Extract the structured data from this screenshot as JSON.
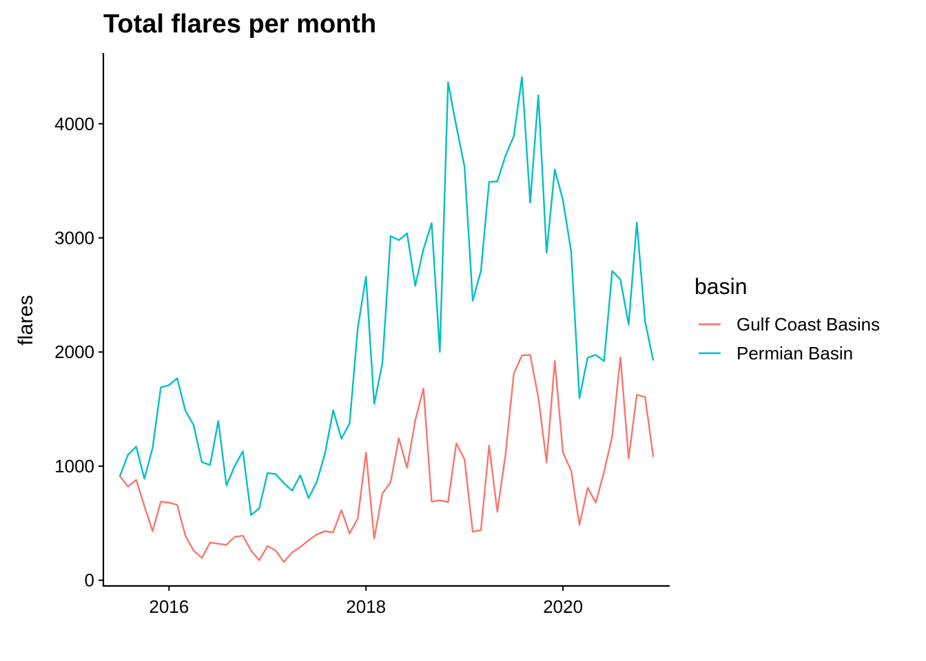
{
  "chart_data": {
    "type": "line",
    "title": "Total flares per month",
    "xlabel": "",
    "ylabel": "flares",
    "x_ticks": [
      "2016",
      "2018",
      "2020"
    ],
    "y_ticks": [
      "0",
      "1000",
      "2000",
      "3000",
      "4000"
    ],
    "xlim": [
      "2015-05",
      "2021-02"
    ],
    "ylim": [
      -50,
      4620
    ],
    "grid": false,
    "legend": {
      "title": "basin",
      "position": "right"
    },
    "x": [
      "2015-07",
      "2015-08",
      "2015-09",
      "2015-10",
      "2015-11",
      "2015-12",
      "2016-01",
      "2016-02",
      "2016-03",
      "2016-04",
      "2016-05",
      "2016-06",
      "2016-07",
      "2016-08",
      "2016-09",
      "2016-10",
      "2016-11",
      "2016-12",
      "2017-01",
      "2017-02",
      "2017-03",
      "2017-04",
      "2017-05",
      "2017-06",
      "2017-07",
      "2017-08",
      "2017-09",
      "2017-10",
      "2017-11",
      "2017-12",
      "2018-01",
      "2018-02",
      "2018-03",
      "2018-04",
      "2018-05",
      "2018-06",
      "2018-07",
      "2018-08",
      "2018-09",
      "2018-10",
      "2018-11",
      "2018-12",
      "2019-01",
      "2019-02",
      "2019-03",
      "2019-04",
      "2019-05",
      "2019-06",
      "2019-07",
      "2019-08",
      "2019-09",
      "2019-10",
      "2019-11",
      "2019-12",
      "2020-01",
      "2020-02",
      "2020-03",
      "2020-04",
      "2020-05",
      "2020-06",
      "2020-07",
      "2020-08",
      "2020-09",
      "2020-10",
      "2020-11",
      "2020-12"
    ],
    "series": [
      {
        "name": "Gulf Coast Basins",
        "color": "#F8766D",
        "values": [
          915,
          820,
          880,
          650,
          430,
          690,
          680,
          660,
          390,
          260,
          195,
          330,
          320,
          310,
          380,
          390,
          260,
          175,
          300,
          260,
          160,
          245,
          290,
          350,
          400,
          430,
          420,
          615,
          410,
          540,
          1120,
          365,
          760,
          860,
          1245,
          985,
          1400,
          1680,
          690,
          700,
          685,
          1200,
          1060,
          425,
          440,
          1180,
          600,
          1100,
          1810,
          1970,
          1975,
          1600,
          1035,
          1920,
          1120,
          960,
          485,
          810,
          680,
          950,
          1260,
          1955,
          1065,
          1625,
          1605,
          1080
        ]
      },
      {
        "name": "Permian Basin",
        "color": "#00BFC4",
        "values": [
          910,
          1100,
          1170,
          890,
          1160,
          1690,
          1710,
          1770,
          1485,
          1360,
          1035,
          1010,
          1395,
          830,
          1000,
          1130,
          570,
          630,
          940,
          930,
          850,
          785,
          920,
          720,
          860,
          1110,
          1490,
          1240,
          1375,
          2210,
          2660,
          1545,
          1900,
          3015,
          2980,
          3040,
          2580,
          2900,
          3130,
          2000,
          4365,
          3980,
          3625,
          2450,
          2710,
          3490,
          3495,
          3720,
          3890,
          4410,
          3310,
          4250,
          2870,
          3600,
          3330,
          2880,
          1595,
          1950,
          1975,
          1920,
          2710,
          2635,
          2240,
          3135,
          2265,
          1925
        ]
      }
    ]
  }
}
